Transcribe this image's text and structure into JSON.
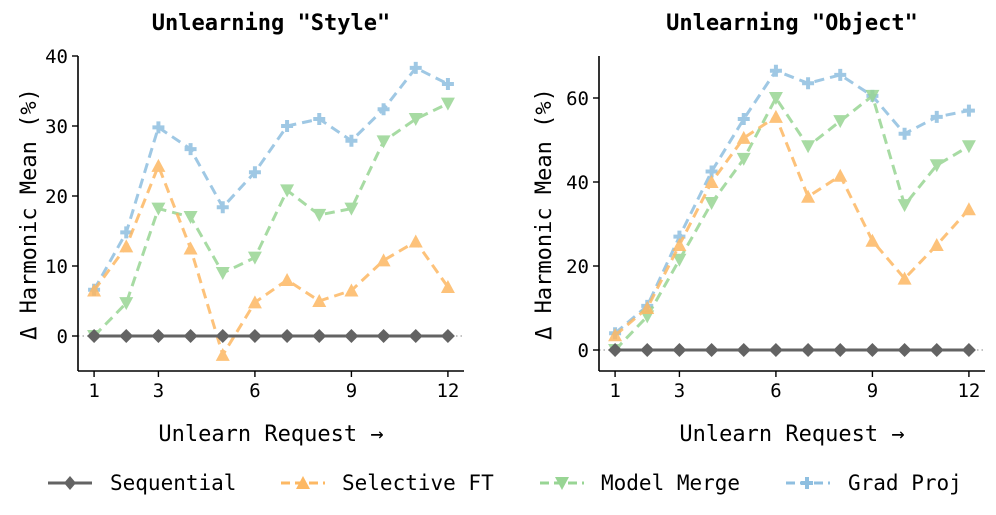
{
  "chart_data": [
    {
      "type": "line",
      "title": "Unlearning \"Style\"",
      "xlabel": "Unlearn Request →",
      "ylabel": "Δ Harmonic Mean (%)",
      "x": [
        1,
        2,
        3,
        4,
        5,
        6,
        7,
        8,
        9,
        10,
        11,
        12
      ],
      "xticks": [
        1,
        3,
        6,
        9,
        12
      ],
      "xlim": [
        0.5,
        12.5
      ],
      "yticks": [
        0,
        10,
        20,
        30,
        40
      ],
      "ylim": [
        -5,
        40
      ],
      "grid": false,
      "series": [
        {
          "name": "Sequential",
          "values": [
            0,
            0,
            0,
            0,
            0,
            0,
            0,
            0,
            0,
            0,
            0,
            0
          ]
        },
        {
          "name": "Selective FT",
          "values": [
            6.5,
            12.8,
            24.3,
            12.5,
            -2.7,
            4.8,
            8,
            5,
            6.5,
            10.8,
            13.5,
            7
          ]
        },
        {
          "name": "Model Merge",
          "values": [
            0,
            4.7,
            18.2,
            17,
            9,
            11.2,
            20.8,
            17.3,
            18.2,
            27.8,
            31,
            33.2
          ]
        },
        {
          "name": "Grad Proj",
          "values": [
            6.6,
            14.8,
            29.8,
            26.7,
            18.4,
            23.4,
            30,
            31,
            27.9,
            32.4,
            38.3,
            36
          ]
        }
      ]
    },
    {
      "type": "line",
      "title": "Unlearning \"Object\"",
      "xlabel": "Unlearn Request →",
      "ylabel": "Δ Harmonic Mean (%)",
      "x": [
        1,
        2,
        3,
        4,
        5,
        6,
        7,
        8,
        9,
        10,
        11,
        12
      ],
      "xticks": [
        1,
        3,
        6,
        9,
        12
      ],
      "xlim": [
        0.5,
        12.5
      ],
      "yticks": [
        0,
        20,
        40,
        60
      ],
      "ylim": [
        -5,
        70
      ],
      "grid": false,
      "series": [
        {
          "name": "Sequential",
          "values": [
            0,
            0,
            0,
            0,
            0,
            0,
            0,
            0,
            0,
            0,
            0,
            0
          ]
        },
        {
          "name": "Selective FT",
          "values": [
            3.5,
            10,
            25,
            40,
            50.5,
            55.5,
            36.5,
            41.5,
            26,
            17,
            25,
            33.5
          ]
        },
        {
          "name": "Model Merge",
          "values": [
            0,
            8,
            21.5,
            35,
            45.5,
            60,
            48.5,
            54.5,
            60.5,
            34.5,
            44,
            48.5
          ]
        },
        {
          "name": "Grad Proj",
          "values": [
            4,
            10.5,
            27,
            42.5,
            55,
            66.5,
            63.5,
            65.5,
            60.5,
            51.5,
            55.5,
            57
          ]
        }
      ]
    }
  ],
  "legend": {
    "placement": "bottom",
    "items": [
      {
        "name": "Sequential",
        "color": "#636363",
        "marker": "diamond"
      },
      {
        "name": "Selective FT",
        "color": "#fdb863",
        "marker": "triangle-up"
      },
      {
        "name": "Model Merge",
        "color": "#98d594",
        "marker": "triangle-down"
      },
      {
        "name": "Grad Proj",
        "color": "#8fbfe0",
        "marker": "plus"
      }
    ]
  }
}
